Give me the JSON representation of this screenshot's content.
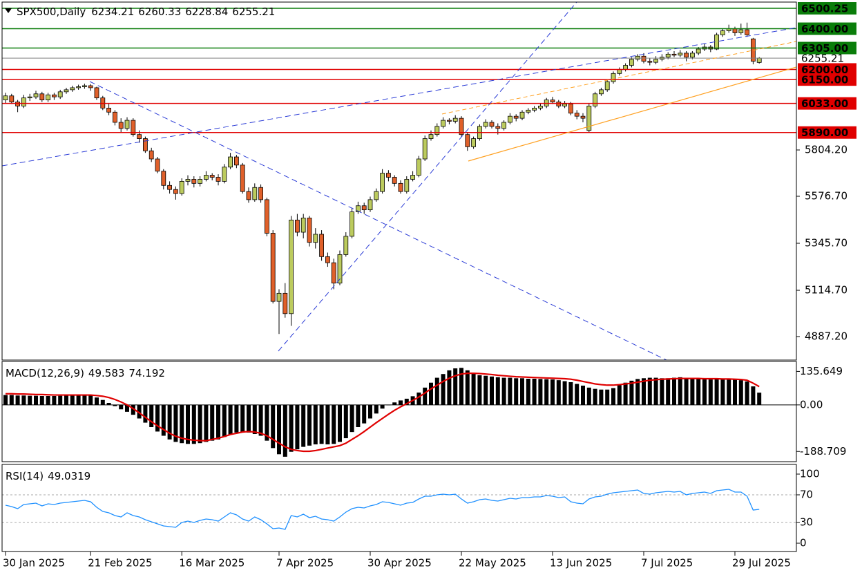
{
  "chart_data": [
    {
      "type": "candlestick",
      "title": "SPX500,Daily",
      "header_values": [
        6234.21,
        6260.33,
        6228.84,
        6255.21
      ],
      "bull_color": "#bccb5e",
      "bear_color": "#e0602a",
      "ylim": [
        4771.8,
        6530.9
      ],
      "yticks": [
        {
          "value": 5804.2,
          "label": "5804.20"
        },
        {
          "value": 5576.7,
          "label": "5576.70"
        },
        {
          "value": 5345.7,
          "label": "5345.70"
        },
        {
          "value": 5114.7,
          "label": "5114.70"
        },
        {
          "value": 4887.2,
          "label": "4887.20"
        }
      ],
      "levels": [
        {
          "value": 6500.25,
          "label": "6500.25",
          "color": "#0a7d0a"
        },
        {
          "value": 6400,
          "label": "6400.00",
          "color": "#0a7d0a"
        },
        {
          "value": 6305,
          "label": "6305.00",
          "color": "#0a7d0a"
        },
        {
          "value": 6255.21,
          "label": "6255.21",
          "color": "#7f7f7f"
        },
        {
          "value": 6200,
          "label": "6200.00",
          "color": "#e00000"
        },
        {
          "value": 6150,
          "label": "6150.00",
          "color": "#e00000"
        },
        {
          "value": 6033,
          "label": "6033.00",
          "color": "#e00000"
        },
        {
          "value": 5890,
          "label": "5890.00",
          "color": "#e00000"
        }
      ],
      "categories": [
        "30 Jan 2025",
        null,
        null,
        null,
        null,
        null,
        null,
        null,
        null,
        null,
        null,
        null,
        null,
        null,
        "21 Feb 2025",
        null,
        null,
        null,
        null,
        null,
        null,
        null,
        null,
        null,
        null,
        null,
        null,
        null,
        null,
        "16 Mar 2025",
        null,
        null,
        null,
        null,
        null,
        null,
        null,
        null,
        null,
        null,
        null,
        null,
        null,
        null,
        null,
        "7 Apr 2025",
        null,
        null,
        null,
        null,
        null,
        null,
        null,
        null,
        null,
        null,
        null,
        null,
        null,
        null,
        "30 Apr 2025",
        null,
        null,
        null,
        null,
        null,
        null,
        null,
        null,
        null,
        null,
        null,
        null,
        null,
        null,
        "22 May 2025",
        null,
        null,
        null,
        null,
        null,
        null,
        null,
        null,
        null,
        null,
        null,
        null,
        null,
        null,
        "13 Jun 2025",
        null,
        null,
        null,
        null,
        null,
        null,
        null,
        null,
        null,
        null,
        null,
        null,
        null,
        null,
        "7 Jul 2025",
        null,
        null,
        null,
        null,
        null,
        null,
        null,
        null,
        null,
        null,
        null,
        null,
        null,
        null,
        "29 Jul 2025",
        null,
        null,
        null,
        null
      ],
      "ohlc": [
        [
          6050,
          6085,
          6035,
          6070
        ],
        [
          6070,
          6080,
          6030,
          6040
        ],
        [
          6040,
          6050,
          5990,
          6020
        ],
        [
          6020,
          6075,
          6010,
          6060
        ],
        [
          6060,
          6080,
          6045,
          6065
        ],
        [
          6065,
          6095,
          6055,
          6080
        ],
        [
          6080,
          6090,
          6040,
          6050
        ],
        [
          6050,
          6085,
          6040,
          6075
        ],
        [
          6075,
          6085,
          6050,
          6065
        ],
        [
          6065,
          6100,
          6055,
          6090
        ],
        [
          6090,
          6110,
          6080,
          6100
        ],
        [
          6100,
          6120,
          6090,
          6110
        ],
        [
          6110,
          6125,
          6100,
          6115
        ],
        [
          6115,
          6130,
          6105,
          6120
        ],
        [
          6120,
          6128,
          6095,
          6110
        ],
        [
          6110,
          6115,
          6050,
          6060
        ],
        [
          6060,
          6070,
          6000,
          6010
        ],
        [
          6010,
          6030,
          5975,
          5990
        ],
        [
          5990,
          6000,
          5925,
          5940
        ],
        [
          5940,
          5960,
          5890,
          5910
        ],
        [
          5910,
          5965,
          5900,
          5950
        ],
        [
          5950,
          5960,
          5870,
          5880
        ],
        [
          5880,
          5900,
          5840,
          5860
        ],
        [
          5860,
          5870,
          5790,
          5800
        ],
        [
          5800,
          5815,
          5745,
          5760
        ],
        [
          5760,
          5770,
          5690,
          5700
        ],
        [
          5700,
          5710,
          5610,
          5630
        ],
        [
          5630,
          5650,
          5590,
          5610
        ],
        [
          5610,
          5625,
          5560,
          5590
        ],
        [
          5590,
          5665,
          5580,
          5650
        ],
        [
          5650,
          5680,
          5630,
          5660
        ],
        [
          5660,
          5675,
          5620,
          5640
        ],
        [
          5640,
          5675,
          5625,
          5660
        ],
        [
          5660,
          5700,
          5650,
          5680
        ],
        [
          5680,
          5690,
          5655,
          5670
        ],
        [
          5670,
          5685,
          5630,
          5650
        ],
        [
          5650,
          5735,
          5640,
          5720
        ],
        [
          5720,
          5790,
          5710,
          5770
        ],
        [
          5770,
          5780,
          5715,
          5730
        ],
        [
          5730,
          5740,
          5590,
          5600
        ],
        [
          5600,
          5620,
          5545,
          5560
        ],
        [
          5560,
          5640,
          5550,
          5620
        ],
        [
          5620,
          5635,
          5545,
          5560
        ],
        [
          5560,
          5570,
          5380,
          5395
        ],
        [
          5395,
          5410,
          5050,
          5060
        ],
        [
          5060,
          5120,
          4900,
          5100
        ],
        [
          5100,
          5150,
          4980,
          5000
        ],
        [
          5000,
          5480,
          4940,
          5460
        ],
        [
          5460,
          5490,
          5380,
          5400
        ],
        [
          5400,
          5490,
          5370,
          5470
        ],
        [
          5470,
          5480,
          5330,
          5350
        ],
        [
          5350,
          5420,
          5320,
          5390
        ],
        [
          5390,
          5410,
          5260,
          5280
        ],
        [
          5280,
          5300,
          5230,
          5250
        ],
        [
          5250,
          5270,
          5120,
          5150
        ],
        [
          5150,
          5310,
          5140,
          5290
        ],
        [
          5290,
          5400,
          5280,
          5380
        ],
        [
          5380,
          5520,
          5370,
          5500
        ],
        [
          5500,
          5550,
          5490,
          5530
        ],
        [
          5530,
          5545,
          5490,
          5510
        ],
        [
          5510,
          5575,
          5500,
          5560
        ],
        [
          5560,
          5615,
          5550,
          5600
        ],
        [
          5600,
          5710,
          5590,
          5690
        ],
        [
          5690,
          5705,
          5650,
          5670
        ],
        [
          5670,
          5680,
          5625,
          5640
        ],
        [
          5640,
          5655,
          5590,
          5600
        ],
        [
          5600,
          5675,
          5590,
          5660
        ],
        [
          5660,
          5700,
          5650,
          5680
        ],
        [
          5680,
          5775,
          5670,
          5760
        ],
        [
          5760,
          5875,
          5750,
          5860
        ],
        [
          5860,
          5900,
          5850,
          5880
        ],
        [
          5880,
          5935,
          5870,
          5920
        ],
        [
          5920,
          5965,
          5910,
          5950
        ],
        [
          5950,
          5960,
          5930,
          5945
        ],
        [
          5945,
          5975,
          5935,
          5960
        ],
        [
          5960,
          5970,
          5870,
          5880
        ],
        [
          5880,
          5890,
          5800,
          5820
        ],
        [
          5820,
          5870,
          5810,
          5860
        ],
        [
          5860,
          5930,
          5850,
          5920
        ],
        [
          5920,
          5955,
          5910,
          5940
        ],
        [
          5940,
          5950,
          5910,
          5920
        ],
        [
          5920,
          5935,
          5880,
          5910
        ],
        [
          5910,
          5950,
          5900,
          5940
        ],
        [
          5940,
          5985,
          5930,
          5970
        ],
        [
          5970,
          5980,
          5945,
          5960
        ],
        [
          5960,
          6000,
          5950,
          5990
        ],
        [
          5990,
          6010,
          5980,
          6000
        ],
        [
          6000,
          6020,
          5990,
          6010
        ],
        [
          6010,
          6035,
          6000,
          6020
        ],
        [
          6020,
          6060,
          6010,
          6050
        ],
        [
          6050,
          6065,
          6030,
          6040
        ],
        [
          6040,
          6050,
          6010,
          6020
        ],
        [
          6020,
          6045,
          6010,
          6030
        ],
        [
          6030,
          6040,
          5975,
          5985
        ],
        [
          5985,
          6000,
          5955,
          5970
        ],
        [
          5970,
          5985,
          5940,
          5960
        ],
        [
          5900,
          6030,
          5890,
          6020
        ],
        [
          6020,
          6090,
          6010,
          6080
        ],
        [
          6080,
          6110,
          6070,
          6100
        ],
        [
          6100,
          6150,
          6090,
          6140
        ],
        [
          6140,
          6190,
          6130,
          6180
        ],
        [
          6180,
          6210,
          6170,
          6200
        ],
        [
          6200,
          6230,
          6190,
          6220
        ],
        [
          6220,
          6260,
          6210,
          6250
        ],
        [
          6250,
          6275,
          6240,
          6265
        ],
        [
          6265,
          6280,
          6230,
          6240
        ],
        [
          6240,
          6255,
          6220,
          6235
        ],
        [
          6235,
          6265,
          6225,
          6250
        ],
        [
          6250,
          6275,
          6240,
          6260
        ],
        [
          6260,
          6285,
          6250,
          6275
        ],
        [
          6275,
          6290,
          6260,
          6270
        ],
        [
          6270,
          6295,
          6260,
          6280
        ],
        [
          6280,
          6290,
          6240,
          6260
        ],
        [
          6260,
          6290,
          6250,
          6280
        ],
        [
          6280,
          6310,
          6270,
          6300
        ],
        [
          6300,
          6325,
          6290,
          6310
        ],
        [
          6310,
          6320,
          6285,
          6300
        ],
        [
          6300,
          6380,
          6295,
          6370
        ],
        [
          6370,
          6400,
          6360,
          6390
        ],
        [
          6390,
          6420,
          6380,
          6400
        ],
        [
          6400,
          6410,
          6365,
          6380
        ],
        [
          6380,
          6425,
          6370,
          6395
        ],
        [
          6395,
          6430,
          6360,
          6370
        ],
        [
          6350,
          6355,
          6225,
          6240
        ],
        [
          6234.21,
          6260.33,
          6228.84,
          6255.21
        ]
      ]
    },
    {
      "type": "macd",
      "title": "MACD(12,26,9)",
      "title_values": [
        49.583,
        74.192
      ],
      "color": "#000000",
      "signal_color": "#e00000",
      "ylim": [
        -230,
        176
      ],
      "yticks": [
        135.649,
        {
          "value": 0,
          "label": "0.00"
        },
        -188.709
      ],
      "values": [
        40,
        40,
        38,
        38,
        37,
        37,
        36,
        36,
        36,
        37,
        38,
        40,
        42,
        40,
        38,
        30,
        20,
        8,
        -5,
        -18,
        -28,
        -40,
        -55,
        -72,
        -90,
        -108,
        -125,
        -140,
        -150,
        -155,
        -158,
        -158,
        -155,
        -150,
        -145,
        -140,
        -130,
        -120,
        -112,
        -110,
        -112,
        -118,
        -125,
        -145,
        -175,
        -200,
        -210,
        -190,
        -180,
        -170,
        -165,
        -160,
        -158,
        -160,
        -158,
        -150,
        -135,
        -110,
        -90,
        -75,
        -55,
        -35,
        -15,
        0,
        10,
        18,
        25,
        35,
        50,
        70,
        90,
        110,
        125,
        140,
        148,
        150,
        140,
        128,
        120,
        118,
        115,
        112,
        110,
        110,
        108,
        108,
        106,
        106,
        105,
        104,
        103,
        100,
        96,
        92,
        85,
        78,
        70,
        65,
        62,
        62,
        68,
        80,
        90,
        98,
        105,
        108,
        110,
        110,
        108,
        108,
        110,
        112,
        110,
        108,
        105,
        104,
        103,
        105,
        104,
        103,
        102,
        100,
        95,
        75,
        49.583
      ],
      "signal": [
        45,
        45,
        44,
        44,
        43,
        42,
        42,
        41,
        40,
        40,
        40,
        40,
        40,
        40,
        40,
        38,
        35,
        30,
        22,
        12,
        0,
        -15,
        -32,
        -50,
        -68,
        -85,
        -100,
        -115,
        -127,
        -135,
        -140,
        -143,
        -145,
        -145,
        -140,
        -135,
        -128,
        -120,
        -115,
        -110,
        -108,
        -110,
        -115,
        -125,
        -140,
        -155,
        -170,
        -180,
        -185,
        -188,
        -188,
        -185,
        -180,
        -175,
        -170,
        -165,
        -155,
        -140,
        -125,
        -108,
        -90,
        -72,
        -55,
        -38,
        -22,
        -8,
        5,
        18,
        32,
        48,
        65,
        80,
        95,
        108,
        118,
        125,
        128,
        128,
        127,
        125,
        123,
        120,
        118,
        116,
        114,
        113,
        112,
        111,
        110,
        109,
        108,
        107,
        106,
        104,
        100,
        95,
        90,
        85,
        82,
        80,
        80,
        82,
        85,
        88,
        92,
        96,
        100,
        102,
        104,
        105,
        106,
        107,
        107,
        107,
        107,
        106,
        106,
        106,
        105,
        105,
        104,
        103,
        100,
        88,
        74.192
      ]
    },
    {
      "type": "line",
      "title": "RSI(14)",
      "title_values": [
        49.0319
      ],
      "color": "#1e90ff",
      "ylim": [
        -12,
        114
      ],
      "yticks": [
        100,
        70,
        30,
        0
      ],
      "levels": [
        70,
        30
      ],
      "values": [
        55,
        53,
        50,
        56,
        57,
        58,
        54,
        57,
        56,
        58,
        59,
        60,
        61,
        62,
        60,
        52,
        46,
        44,
        40,
        38,
        44,
        40,
        38,
        34,
        31,
        28,
        25,
        24,
        23,
        30,
        32,
        30,
        33,
        35,
        34,
        32,
        38,
        44,
        41,
        35,
        32,
        38,
        34,
        28,
        21,
        22,
        20,
        40,
        38,
        42,
        37,
        39,
        35,
        34,
        32,
        38,
        45,
        50,
        52,
        51,
        54,
        56,
        60,
        59,
        57,
        55,
        58,
        59,
        64,
        68,
        68,
        70,
        71,
        70,
        71,
        64,
        58,
        60,
        63,
        64,
        62,
        61,
        63,
        65,
        64,
        66,
        66,
        67,
        67,
        69,
        68,
        66,
        67,
        60,
        58,
        57,
        64,
        67,
        68,
        71,
        73,
        74,
        75,
        76,
        77,
        72,
        71,
        73,
        74,
        75,
        74,
        75,
        70,
        72,
        73,
        74,
        72,
        76,
        77,
        78,
        74,
        74,
        68,
        48,
        49.0319
      ]
    }
  ]
}
